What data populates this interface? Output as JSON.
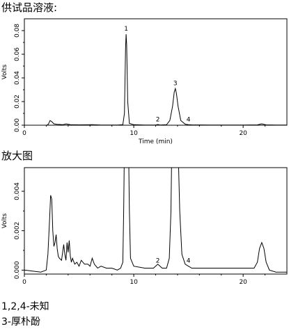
{
  "headings": {
    "sample_solution": "供试品溶液:",
    "zoomed": "放大图"
  },
  "legend_notes": {
    "line1": "1,2,4-未知",
    "line2": "3-厚朴酚"
  },
  "colors": {
    "trace": "#000000",
    "axis": "#000000",
    "background": "#ffffff"
  },
  "chart_data": [
    {
      "type": "line",
      "title": "",
      "xlabel": "Time (min)",
      "ylabel": "Volts",
      "xlim": [
        0,
        24
      ],
      "ylim": [
        0,
        0.09
      ],
      "xticks": [
        0,
        10,
        20
      ],
      "yticks": [
        0.0,
        0.02,
        0.04,
        0.06,
        0.08
      ],
      "ytick_labels": [
        "0.00",
        "0.02",
        "0.04",
        "0.06",
        "0.08"
      ],
      "grid": false,
      "peaks": [
        {
          "label": "1",
          "time": 9.3,
          "height": 0.077
        },
        {
          "label": "2",
          "time": 12.2,
          "height": 0.0004
        },
        {
          "label": "3",
          "time": 13.8,
          "height": 0.031
        },
        {
          "label": "4",
          "time": 15.0,
          "height": 0.0003
        }
      ],
      "series": [
        {
          "x": [
            0,
            2.0,
            2.2,
            2.35,
            2.5,
            2.7,
            3.0,
            3.5,
            3.8,
            4.2,
            5.0,
            6.2,
            7.0,
            8.5,
            9.0,
            9.15,
            9.25,
            9.3,
            9.35,
            9.45,
            9.6,
            10.0,
            11.0,
            12.0,
            12.2,
            12.4,
            13.0,
            13.3,
            13.55,
            13.7,
            13.8,
            13.9,
            14.05,
            14.3,
            14.7,
            15.0,
            15.3,
            17.0,
            20.0,
            21.3,
            21.7,
            22.1,
            23.0,
            24.0
          ],
          "y": [
            -0.0005,
            -0.0005,
            0.001,
            0.004,
            0.003,
            0.0012,
            0.0007,
            0.0004,
            0.0011,
            0.0005,
            0.0003,
            0.0004,
            0.0002,
            0.0002,
            0.0005,
            0.01,
            0.065,
            0.077,
            0.068,
            0.02,
            0.0015,
            0.0004,
            0.0002,
            0.0002,
            0.0006,
            0.0002,
            0.0004,
            0.004,
            0.016,
            0.028,
            0.031,
            0.027,
            0.016,
            0.004,
            0.0009,
            0.0005,
            0.0003,
            0.0002,
            0.0002,
            0.0003,
            0.0012,
            0.0003,
            0.0001,
            0.0001
          ]
        }
      ]
    },
    {
      "type": "line",
      "title": "",
      "xlabel": "",
      "ylabel": "Volts",
      "xlim": [
        0,
        24
      ],
      "ylim": [
        -0.0002,
        0.0052
      ],
      "xticks": [
        0,
        10,
        20
      ],
      "yticks": [
        0.0,
        0.002,
        0.004
      ],
      "ytick_labels": [
        "0.000",
        "0.002",
        "0.004"
      ],
      "grid": false,
      "peaks": [
        {
          "label": "2",
          "time": 12.2,
          "height": 0.0002
        },
        {
          "label": "4",
          "time": 15.0,
          "height": 0.0002
        }
      ],
      "series": [
        {
          "x": [
            0,
            1.5,
            2.0,
            2.15,
            2.3,
            2.4,
            2.5,
            2.6,
            2.7,
            2.8,
            2.9,
            3.0,
            3.1,
            3.2,
            3.4,
            3.6,
            3.7,
            3.8,
            3.9,
            4.0,
            4.1,
            4.2,
            4.3,
            4.4,
            4.6,
            4.8,
            5.0,
            5.2,
            5.5,
            5.8,
            6.0,
            6.2,
            6.4,
            6.7,
            7.0,
            7.5,
            8.0,
            8.5,
            8.8,
            9.0,
            9.08,
            9.12,
            9.55,
            9.6,
            9.7,
            10.0,
            11.0,
            11.8,
            12.2,
            12.6,
            13.0,
            13.25,
            13.4,
            13.45,
            14.1,
            14.2,
            14.4,
            14.7,
            15.0,
            15.3,
            16.0,
            17.0,
            18.0,
            19.0,
            20.0,
            20.6,
            21.0,
            21.3,
            21.5,
            21.7,
            21.9,
            22.1,
            22.4,
            23.0,
            24.0
          ],
          "y": [
            0.0,
            -0.0001,
            0.0,
            0.0008,
            0.0025,
            0.0038,
            0.0036,
            0.002,
            0.0012,
            0.0014,
            0.0018,
            0.0011,
            0.0007,
            0.0006,
            0.0005,
            0.0013,
            0.0008,
            0.0005,
            0.0014,
            0.0009,
            0.0015,
            0.0007,
            0.0004,
            0.0006,
            0.0003,
            0.0004,
            0.0002,
            0.0005,
            0.0003,
            0.0003,
            0.0002,
            0.0006,
            0.0003,
            0.0001,
            0.0002,
            0.0001,
            0.0001,
            0.0,
            0.0001,
            0.0004,
            0.003,
            0.0052,
            0.0052,
            0.003,
            0.0006,
            0.0002,
            0.0001,
            0.0001,
            0.0003,
            0.0001,
            0.0001,
            0.0006,
            0.003,
            0.0052,
            0.0052,
            0.003,
            0.0008,
            0.0003,
            0.0002,
            0.0001,
            0.0001,
            0.0001,
            0.0001,
            0.0001,
            0.0001,
            0.0001,
            0.0001,
            0.0004,
            0.0011,
            0.0014,
            0.0011,
            0.0004,
            0.0,
            -0.0001,
            -0.0001
          ]
        }
      ]
    }
  ]
}
